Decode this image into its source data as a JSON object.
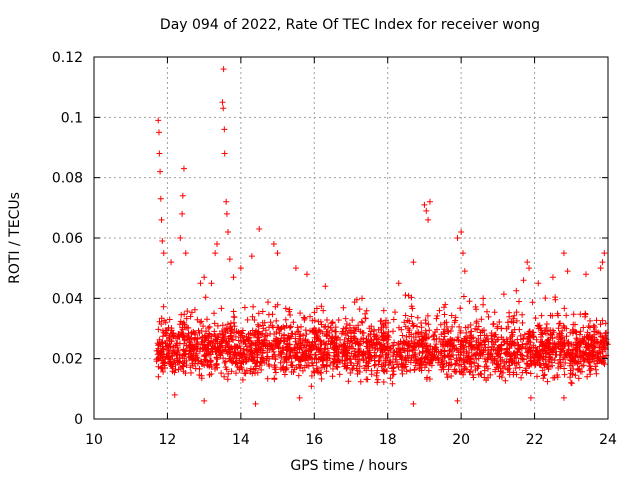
{
  "chart_data": {
    "type": "scatter",
    "title": "Day 094 of 2022, Rate Of TEC Index for receiver wong",
    "xlabel": "GPS time / hours",
    "ylabel": "ROTI / TECUs",
    "xlim": [
      10,
      24
    ],
    "ylim": [
      0,
      0.12
    ],
    "x_ticks": [
      "10",
      "12",
      "14",
      "16",
      "18",
      "20",
      "22",
      "24"
    ],
    "y_ticks": [
      "0",
      "0.02",
      "0.04",
      "0.06",
      "0.08",
      "0.1",
      "0.12"
    ],
    "grid": true,
    "marker": "+",
    "color": "#ff0000",
    "data_start_hour": 11.7,
    "bulk_range": [
      0.01,
      0.035
    ],
    "points": [
      [
        11.75,
        0.099
      ],
      [
        11.77,
        0.095
      ],
      [
        11.78,
        0.088
      ],
      [
        11.8,
        0.082
      ],
      [
        11.82,
        0.073
      ],
      [
        11.84,
        0.066
      ],
      [
        11.86,
        0.059
      ],
      [
        11.9,
        0.055
      ],
      [
        12.1,
        0.052
      ],
      [
        12.35,
        0.06
      ],
      [
        12.4,
        0.068
      ],
      [
        12.42,
        0.074
      ],
      [
        12.45,
        0.083
      ],
      [
        12.5,
        0.055
      ],
      [
        12.9,
        0.045
      ],
      [
        13.0,
        0.047
      ],
      [
        13.2,
        0.045
      ],
      [
        13.3,
        0.055
      ],
      [
        13.35,
        0.058
      ],
      [
        13.5,
        0.105
      ],
      [
        13.52,
        0.103
      ],
      [
        13.53,
        0.116
      ],
      [
        13.55,
        0.096
      ],
      [
        13.56,
        0.088
      ],
      [
        13.6,
        0.072
      ],
      [
        13.62,
        0.068
      ],
      [
        13.65,
        0.062
      ],
      [
        13.7,
        0.053
      ],
      [
        13.8,
        0.047
      ],
      [
        14.0,
        0.05
      ],
      [
        14.3,
        0.054
      ],
      [
        14.5,
        0.063
      ],
      [
        14.9,
        0.058
      ],
      [
        15.0,
        0.055
      ],
      [
        15.5,
        0.05
      ],
      [
        15.8,
        0.048
      ],
      [
        16.3,
        0.044
      ],
      [
        17.3,
        0.04
      ],
      [
        18.3,
        0.045
      ],
      [
        18.7,
        0.052
      ],
      [
        19.0,
        0.071
      ],
      [
        19.05,
        0.069
      ],
      [
        19.1,
        0.066
      ],
      [
        19.15,
        0.072
      ],
      [
        19.9,
        0.06
      ],
      [
        20.0,
        0.062
      ],
      [
        20.05,
        0.055
      ],
      [
        20.1,
        0.049
      ],
      [
        20.6,
        0.04
      ],
      [
        21.7,
        0.046
      ],
      [
        21.8,
        0.052
      ],
      [
        21.85,
        0.05
      ],
      [
        22.1,
        0.045
      ],
      [
        22.5,
        0.047
      ],
      [
        22.8,
        0.055
      ],
      [
        22.9,
        0.049
      ],
      [
        23.4,
        0.048
      ],
      [
        23.8,
        0.05
      ],
      [
        23.85,
        0.052
      ],
      [
        23.9,
        0.055
      ],
      [
        12.2,
        0.008
      ],
      [
        13.0,
        0.006
      ],
      [
        14.4,
        0.005
      ],
      [
        15.6,
        0.007
      ],
      [
        18.7,
        0.005
      ],
      [
        19.9,
        0.006
      ],
      [
        21.9,
        0.007
      ],
      [
        22.8,
        0.007
      ]
    ]
  }
}
